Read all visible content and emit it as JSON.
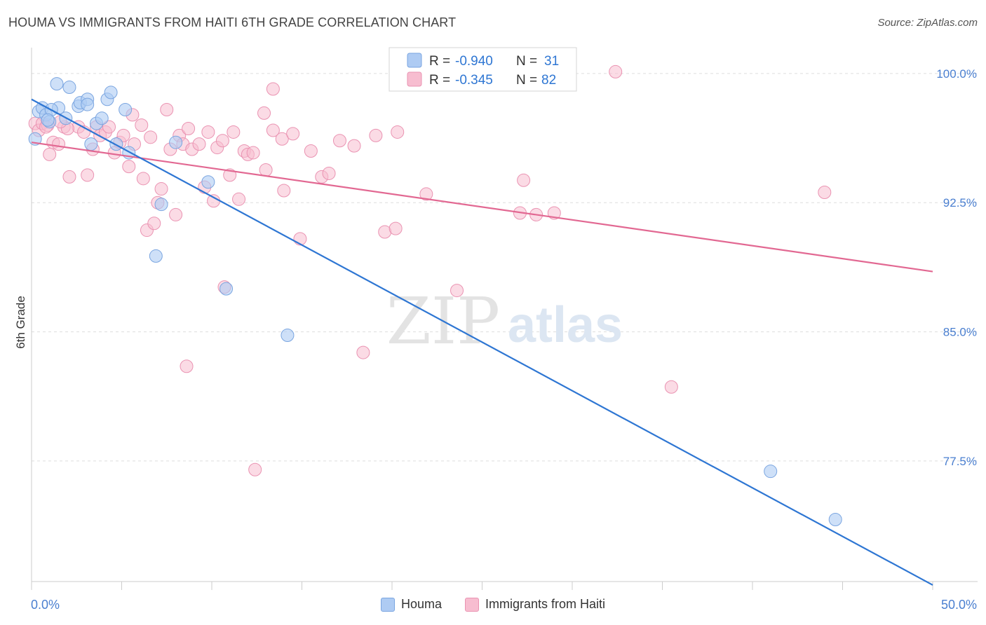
{
  "title": "HOUMA VS IMMIGRANTS FROM HAITI 6TH GRADE CORRELATION CHART",
  "source": "Source: ZipAtlas.com",
  "watermark": {
    "zip": "ZIP",
    "atlas": "atlas"
  },
  "colors": {
    "blue_fill": "#aecbf3",
    "blue_stroke": "#7aa5e0",
    "blue_line": "#2e76d3",
    "pink_fill": "#f7bdd0",
    "pink_stroke": "#ea93b2",
    "pink_line": "#e26892",
    "axis_text": "#4a7fd0",
    "grid": "#dddddd"
  },
  "stats_legend": [
    {
      "series": "Houma",
      "r_label": "R =",
      "r_value": "-0.940",
      "n_label": "N =",
      "n_value": "31"
    },
    {
      "series": "Immigrants from Haiti",
      "r_label": "R =",
      "r_value": "-0.345",
      "n_label": "N =",
      "n_value": "82"
    }
  ],
  "chart_data": {
    "type": "scatter",
    "title": "HOUMA VS IMMIGRANTS FROM HAITI 6TH GRADE CORRELATION CHART",
    "xlabel": "",
    "ylabel": "6th Grade",
    "xlim": [
      0,
      50
    ],
    "ylim": [
      70.5,
      101.5
    ],
    "x_tick_labels": [
      "0.0%",
      "50.0%"
    ],
    "y_ticks": [
      77.5,
      85.0,
      92.5,
      100.0
    ],
    "y_tick_labels": [
      "77.5%",
      "85.0%",
      "92.5%",
      "100.0%"
    ],
    "grid": true,
    "legend": "top-center",
    "series": [
      {
        "name": "Houma",
        "trendline": {
          "x": [
            0,
            50
          ],
          "y": [
            98.5,
            70.3
          ]
        },
        "points": [
          [
            0.2,
            96.2
          ],
          [
            0.4,
            97.8
          ],
          [
            0.6,
            98.0
          ],
          [
            0.8,
            97.6
          ],
          [
            1.0,
            97.2
          ],
          [
            1.4,
            99.4
          ],
          [
            1.5,
            98.0
          ],
          [
            1.9,
            97.4
          ],
          [
            2.1,
            99.2
          ],
          [
            2.6,
            98.1
          ],
          [
            2.7,
            98.3
          ],
          [
            3.1,
            98.5
          ],
          [
            3.1,
            98.2
          ],
          [
            3.3,
            95.9
          ],
          [
            3.6,
            97.1
          ],
          [
            3.9,
            97.4
          ],
          [
            4.2,
            98.5
          ],
          [
            4.4,
            98.9
          ],
          [
            4.7,
            95.9
          ],
          [
            5.2,
            97.9
          ],
          [
            5.4,
            95.4
          ],
          [
            6.9,
            89.4
          ],
          [
            7.2,
            92.4
          ],
          [
            8.0,
            96.0
          ],
          [
            9.8,
            93.7
          ],
          [
            10.8,
            87.5
          ],
          [
            14.2,
            84.8
          ],
          [
            41.0,
            76.9
          ],
          [
            44.6,
            74.1
          ],
          [
            1.1,
            97.9
          ],
          [
            0.9,
            97.3
          ]
        ]
      },
      {
        "name": "Immigrants from Haiti",
        "trendline": {
          "x": [
            0,
            50
          ],
          "y": [
            96.0,
            88.5
          ]
        },
        "points": [
          [
            0.2,
            97.1
          ],
          [
            0.4,
            96.7
          ],
          [
            0.6,
            97.1
          ],
          [
            0.9,
            97.0
          ],
          [
            1.0,
            95.3
          ],
          [
            1.2,
            96.0
          ],
          [
            1.5,
            95.9
          ],
          [
            1.8,
            96.9
          ],
          [
            2.1,
            94.0
          ],
          [
            2.6,
            96.9
          ],
          [
            2.9,
            96.6
          ],
          [
            3.1,
            94.1
          ],
          [
            3.4,
            95.6
          ],
          [
            3.6,
            96.9
          ],
          [
            3.8,
            96.4
          ],
          [
            4.1,
            96.6
          ],
          [
            4.3,
            96.9
          ],
          [
            4.6,
            95.4
          ],
          [
            4.9,
            96.0
          ],
          [
            5.1,
            96.4
          ],
          [
            5.4,
            94.6
          ],
          [
            5.6,
            97.6
          ],
          [
            5.7,
            95.9
          ],
          [
            6.1,
            97.0
          ],
          [
            6.2,
            93.9
          ],
          [
            6.4,
            90.9
          ],
          [
            6.6,
            96.3
          ],
          [
            6.8,
            91.3
          ],
          [
            7.0,
            92.5
          ],
          [
            7.2,
            93.3
          ],
          [
            7.5,
            97.9
          ],
          [
            7.7,
            95.6
          ],
          [
            8.0,
            91.8
          ],
          [
            8.2,
            96.4
          ],
          [
            8.4,
            95.9
          ],
          [
            8.7,
            96.8
          ],
          [
            8.9,
            95.6
          ],
          [
            9.3,
            95.9
          ],
          [
            9.6,
            93.4
          ],
          [
            9.8,
            96.6
          ],
          [
            10.1,
            92.6
          ],
          [
            10.3,
            95.7
          ],
          [
            10.6,
            96.1
          ],
          [
            10.7,
            87.6
          ],
          [
            11.0,
            94.1
          ],
          [
            11.2,
            96.6
          ],
          [
            11.5,
            92.7
          ],
          [
            11.8,
            95.5
          ],
          [
            12.0,
            95.3
          ],
          [
            12.3,
            95.4
          ],
          [
            12.4,
            77.0
          ],
          [
            12.9,
            97.7
          ],
          [
            13.0,
            94.4
          ],
          [
            13.4,
            96.7
          ],
          [
            13.9,
            96.2
          ],
          [
            13.4,
            99.1
          ],
          [
            14.0,
            93.2
          ],
          [
            14.5,
            96.5
          ],
          [
            14.9,
            90.4
          ],
          [
            15.5,
            95.5
          ],
          [
            16.1,
            94.0
          ],
          [
            16.5,
            94.2
          ],
          [
            17.1,
            96.1
          ],
          [
            17.9,
            95.8
          ],
          [
            18.4,
            83.8
          ],
          [
            19.1,
            96.4
          ],
          [
            19.6,
            90.8
          ],
          [
            20.2,
            91.0
          ],
          [
            20.3,
            96.6
          ],
          [
            21.9,
            93.0
          ],
          [
            23.6,
            87.4
          ],
          [
            27.1,
            91.9
          ],
          [
            27.3,
            93.8
          ],
          [
            28.0,
            91.8
          ],
          [
            29.0,
            91.9
          ],
          [
            32.4,
            100.1
          ],
          [
            35.5,
            81.8
          ],
          [
            44.0,
            93.1
          ],
          [
            8.6,
            83.0
          ],
          [
            2.0,
            96.8
          ],
          [
            0.8,
            96.9
          ],
          [
            1.6,
            97.2
          ]
        ]
      }
    ]
  }
}
